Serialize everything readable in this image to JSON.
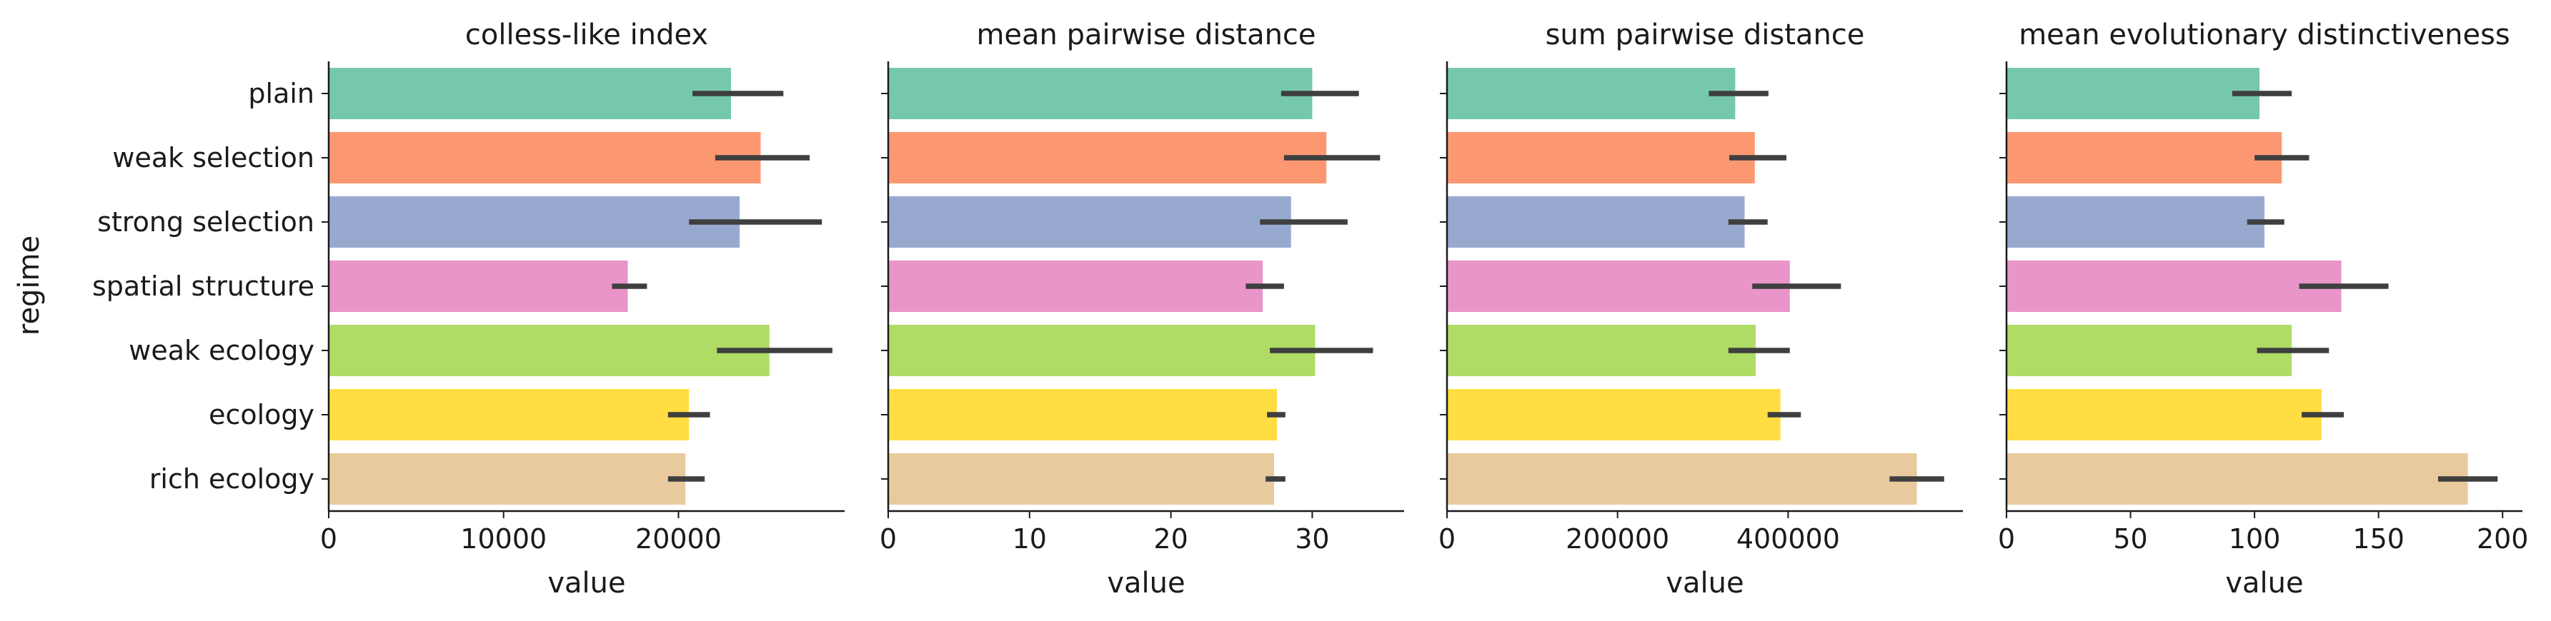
{
  "chart_data": [
    {
      "type": "bar",
      "orientation": "horizontal",
      "title": "colless-like index",
      "xlabel": "value",
      "ylabel": "regime",
      "categories": [
        "plain",
        "weak selection",
        "strong selection",
        "spatial structure",
        "weak ecology",
        "ecology",
        "rich ecology"
      ],
      "values": [
        23000,
        24700,
        23500,
        17100,
        25200,
        20600,
        20400
      ],
      "error_low": [
        20800,
        22100,
        20600,
        16200,
        22200,
        19400,
        19400
      ],
      "error_high": [
        26000,
        27500,
        28200,
        18200,
        28800,
        21800,
        21500
      ],
      "xlim": [
        0,
        29500
      ],
      "xticks": [
        0,
        10000,
        20000
      ],
      "xtick_labels": [
        "0",
        "10000",
        "20000"
      ]
    },
    {
      "type": "bar",
      "orientation": "horizontal",
      "title": "mean pairwise distance",
      "xlabel": "value",
      "ylabel": "",
      "categories": [
        "plain",
        "weak selection",
        "strong selection",
        "spatial structure",
        "weak ecology",
        "ecology",
        "rich ecology"
      ],
      "values": [
        30.0,
        31.0,
        28.5,
        26.5,
        30.2,
        27.5,
        27.3
      ],
      "error_low": [
        27.8,
        28.0,
        26.3,
        25.3,
        27.0,
        26.8,
        26.7
      ],
      "error_high": [
        33.3,
        34.8,
        32.5,
        28.0,
        34.3,
        28.1,
        28.1
      ],
      "xlim": [
        0,
        36.5
      ],
      "xticks": [
        0,
        10,
        20,
        30
      ],
      "xtick_labels": [
        "0",
        "10",
        "20",
        "30"
      ]
    },
    {
      "type": "bar",
      "orientation": "horizontal",
      "title": "sum pairwise distance",
      "xlabel": "value",
      "ylabel": "",
      "categories": [
        "plain",
        "weak selection",
        "strong selection",
        "spatial structure",
        "weak ecology",
        "ecology",
        "rich ecology"
      ],
      "values": [
        338000,
        361000,
        349000,
        402000,
        362000,
        391000,
        551000
      ],
      "error_low": [
        307000,
        331000,
        330000,
        358000,
        330000,
        376000,
        519000
      ],
      "error_high": [
        377000,
        398000,
        376000,
        462000,
        402000,
        415000,
        583000
      ],
      "xlim": [
        0,
        605000
      ],
      "xticks": [
        0,
        200000,
        400000
      ],
      "xtick_labels": [
        "0",
        "200000",
        "400000"
      ]
    },
    {
      "type": "bar",
      "orientation": "horizontal",
      "title": "mean evolutionary distinctiveness",
      "xlabel": "value",
      "ylabel": "",
      "categories": [
        "plain",
        "weak selection",
        "strong selection",
        "spatial structure",
        "weak ecology",
        "ecology",
        "rich ecology"
      ],
      "values": [
        102,
        111,
        104,
        135,
        115,
        127,
        186
      ],
      "error_low": [
        91,
        100,
        97,
        118,
        101,
        119,
        174
      ],
      "error_high": [
        115,
        122,
        112,
        154,
        130,
        136,
        198
      ],
      "xlim": [
        0,
        208
      ],
      "xticks": [
        0,
        50,
        100,
        150,
        200
      ],
      "xtick_labels": [
        "0",
        "50",
        "100",
        "150",
        "200"
      ]
    }
  ],
  "palette": [
    "#66c2a5",
    "#fc8d62",
    "#8da0cb",
    "#e78ac3",
    "#a6d854",
    "#ffd92f",
    "#e5c494"
  ],
  "bar_opacity": 0.9,
  "errorbar_color": "#3f3f3f",
  "shared_y": true,
  "grid": false
}
